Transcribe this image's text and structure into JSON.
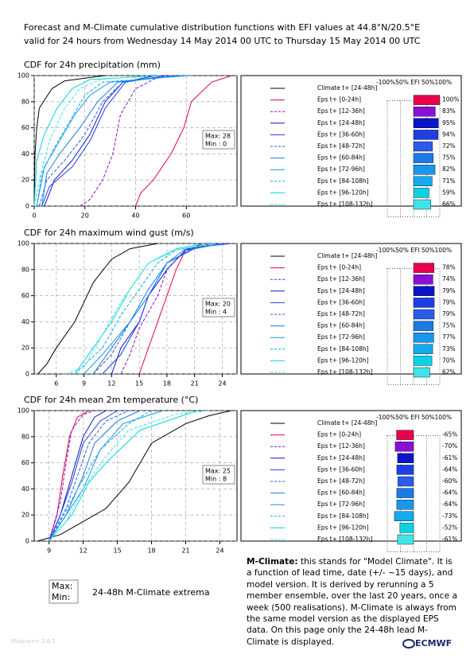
{
  "header": {
    "title": "Forecast and M-Climate cumulative distribution functions with EFI values at 44.8°N/20.5°E",
    "subtitle": "valid for 24 hours from Wednesday 14 May 2014 00 UTC to Thursday 15 May 2014 00 UTC"
  },
  "chart_data": [
    {
      "type": "line",
      "title": "CDF for 24h precipitation (mm)",
      "xlim": [
        0,
        80
      ],
      "xticks": [
        0,
        20,
        40,
        60
      ],
      "ylim": [
        0,
        100
      ],
      "yticks": [
        0,
        20,
        40,
        60,
        80,
        100
      ],
      "grid": true,
      "max_label": "Max: 28",
      "min_label": "Min : 0",
      "efi_header": "-100%50% EFI 50%100%",
      "series": [
        {
          "name": "Climate t+ [24-48h]",
          "color": "#000000",
          "dash": false,
          "x": [
            0,
            0.3,
            1,
            2,
            7,
            12,
            28
          ],
          "values": [
            0,
            40,
            60,
            75,
            90,
            96,
            100
          ]
        },
        {
          "name": "Eps t+ [0-24h]",
          "color": "#e8004c",
          "dash": false,
          "x": [
            40,
            42,
            47,
            54,
            59,
            62,
            70,
            78
          ],
          "values": [
            0,
            10,
            20,
            40,
            60,
            80,
            95,
            100
          ],
          "efi": 100,
          "efi_label": "100%"
        },
        {
          "name": "Eps t+ [12-36h]",
          "color": "#8a10d8",
          "dash": true,
          "x": [
            18,
            22,
            27,
            31,
            34,
            40,
            50
          ],
          "values": [
            0,
            5,
            20,
            40,
            70,
            90,
            100
          ],
          "efi": 83,
          "efi_label": "83%"
        },
        {
          "name": "Eps t+ [24-48h]",
          "color": "#0a14c8",
          "dash": false,
          "x": [
            4,
            8,
            15,
            22,
            28,
            35,
            48
          ],
          "values": [
            0,
            20,
            35,
            55,
            80,
            95,
            100
          ],
          "efi": 95,
          "efi_label": "95%"
        },
        {
          "name": "Eps t+ [36-60h]",
          "color": "#1e3ee6",
          "dash": false,
          "x": [
            3,
            6,
            15,
            22,
            28,
            36,
            52
          ],
          "values": [
            0,
            15,
            30,
            50,
            75,
            95,
            100
          ],
          "efi": 94,
          "efi_label": "94%"
        },
        {
          "name": "Eps t+ [48-72h]",
          "color": "#2a5cec",
          "dash": true,
          "x": [
            2,
            5,
            12,
            20,
            27,
            35,
            55
          ],
          "values": [
            0,
            20,
            35,
            55,
            80,
            95,
            100
          ],
          "efi": 72,
          "efi_label": "72%"
        },
        {
          "name": "Eps t+ [60-84h]",
          "color": "#1c7ae4",
          "dash": false,
          "x": [
            3,
            5,
            10,
            18,
            25,
            33,
            58
          ],
          "values": [
            0,
            25,
            40,
            60,
            80,
            95,
            100
          ],
          "efi": 75,
          "efi_label": "75%"
        },
        {
          "name": "Eps t+ [72-96h]",
          "color": "#1a96ec",
          "dash": false,
          "x": [
            1,
            4,
            10,
            16,
            22,
            30,
            60
          ],
          "values": [
            0,
            30,
            50,
            70,
            85,
            95,
            100
          ],
          "efi": 82,
          "efi_label": "82%"
        },
        {
          "name": "Eps t+ [84-108h]",
          "color": "#12aaf0",
          "dash": true,
          "x": [
            1,
            3,
            8,
            14,
            20,
            27,
            62
          ],
          "values": [
            0,
            25,
            45,
            65,
            85,
            95,
            100
          ],
          "efi": 71,
          "efi_label": "71%"
        },
        {
          "name": "Eps t+ [96-120h]",
          "color": "#08d4e4",
          "dash": false,
          "x": [
            0,
            1,
            4,
            9,
            15,
            22,
            50
          ],
          "values": [
            0,
            35,
            55,
            75,
            90,
            97,
            100
          ],
          "efi": 59,
          "efi_label": "59%"
        },
        {
          "name": "Eps t+ [108-132h]",
          "color": "#40e4e8",
          "dash": true,
          "x": [
            0,
            2,
            6,
            12,
            18,
            26,
            45
          ],
          "values": [
            0,
            20,
            50,
            75,
            90,
            97,
            100
          ],
          "efi": 66,
          "efi_label": "66%"
        }
      ]
    },
    {
      "type": "line",
      "title": "CDF for 24h maximum wind gust (m/s)",
      "xlim": [
        3.6,
        25.6
      ],
      "xticks": [
        6,
        9,
        12,
        15,
        18,
        21,
        24
      ],
      "ylim": [
        0,
        100
      ],
      "yticks": [
        0,
        20,
        40,
        60,
        80,
        100
      ],
      "grid": true,
      "max_label": "Max: 20",
      "min_label": "Min : 4",
      "efi_header": "-100%50% EFI 50%100%",
      "series": [
        {
          "name": "Climate t+ [24-48h]",
          "color": "#000000",
          "dash": false,
          "x": [
            4,
            5,
            6,
            8,
            10,
            12,
            14,
            17
          ],
          "values": [
            0,
            8,
            20,
            40,
            70,
            88,
            96,
            100
          ]
        },
        {
          "name": "Eps t+ [0-24h]",
          "color": "#e8004c",
          "dash": false,
          "x": [
            15,
            16,
            17,
            18,
            19,
            20,
            22
          ],
          "values": [
            0,
            20,
            40,
            60,
            80,
            95,
            100
          ],
          "efi": 78,
          "efi_label": "78%"
        },
        {
          "name": "Eps t+ [12-36h]",
          "color": "#8a10d8",
          "dash": true,
          "x": [
            13,
            14,
            15,
            17,
            18,
            20,
            23
          ],
          "values": [
            0,
            15,
            35,
            60,
            80,
            95,
            100
          ],
          "efi": 74,
          "efi_label": "74%"
        },
        {
          "name": "Eps t+ [24-48h]",
          "color": "#0a14c8",
          "dash": false,
          "x": [
            12,
            13,
            15,
            16,
            18,
            20,
            24
          ],
          "values": [
            0,
            20,
            40,
            60,
            80,
            95,
            100
          ],
          "efi": 79,
          "efi_label": "79%"
        },
        {
          "name": "Eps t+ [36-60h]",
          "color": "#1e3ee6",
          "dash": false,
          "x": [
            11,
            13,
            15,
            16,
            18,
            21,
            25
          ],
          "values": [
            0,
            15,
            40,
            60,
            85,
            97,
            100
          ],
          "efi": 79,
          "efi_label": "79%"
        },
        {
          "name": "Eps t+ [48-72h]",
          "color": "#2a5cec",
          "dash": true,
          "x": [
            10,
            12,
            14,
            16,
            18,
            21,
            25
          ],
          "values": [
            0,
            15,
            40,
            65,
            85,
            97,
            100
          ],
          "efi": 79,
          "efi_label": "79%"
        },
        {
          "name": "Eps t+ [60-84h]",
          "color": "#1c7ae4",
          "dash": false,
          "x": [
            10,
            12,
            14,
            16,
            18,
            21,
            24
          ],
          "values": [
            0,
            20,
            40,
            60,
            85,
            96,
            100
          ],
          "efi": 75,
          "efi_label": "75%"
        },
        {
          "name": "Eps t+ [72-96h]",
          "color": "#1a96ec",
          "dash": false,
          "x": [
            9,
            11,
            14,
            16,
            18,
            20,
            24
          ],
          "values": [
            0,
            15,
            40,
            65,
            85,
            96,
            100
          ],
          "efi": 77,
          "efi_label": "77%"
        },
        {
          "name": "Eps t+ [84-108h]",
          "color": "#12aaf0",
          "dash": true,
          "x": [
            8,
            11,
            13,
            15,
            17,
            19,
            23
          ],
          "values": [
            0,
            20,
            45,
            65,
            85,
            95,
            100
          ],
          "efi": 73,
          "efi_label": "73%"
        },
        {
          "name": "Eps t+ [96-120h]",
          "color": "#08d4e4",
          "dash": false,
          "x": [
            8,
            10,
            12,
            14,
            16,
            19,
            22
          ],
          "values": [
            0,
            20,
            40,
            65,
            85,
            96,
            100
          ],
          "efi": 70,
          "efi_label": "70%"
        },
        {
          "name": "Eps t+ [108-132h]",
          "color": "#40e4e8",
          "dash": true,
          "x": [
            7,
            9,
            11,
            13,
            16,
            19,
            23
          ],
          "values": [
            0,
            5,
            30,
            55,
            85,
            95,
            100
          ],
          "efi": 62,
          "efi_label": "62%"
        }
      ]
    },
    {
      "type": "line",
      "title": "CDF for 24h mean 2m temperature (°C)",
      "xlim": [
        7.7,
        25.5
      ],
      "xticks": [
        9,
        12,
        15,
        18,
        21,
        24
      ],
      "ylim": [
        0,
        100
      ],
      "yticks": [
        0,
        20,
        40,
        60,
        80,
        100
      ],
      "grid": true,
      "max_label": "Max: 25",
      "min_label": "Min : 8",
      "efi_header": "-100%50% EFI 50%100%",
      "series": [
        {
          "name": "Climate t+ [24-48h]",
          "color": "#000000",
          "dash": false,
          "x": [
            8,
            10,
            12,
            14,
            16,
            18,
            21,
            23,
            25
          ],
          "values": [
            0,
            5,
            15,
            25,
            45,
            75,
            90,
            96,
            100
          ]
        },
        {
          "name": "Eps t+ [0-24h]",
          "color": "#e8004c",
          "dash": false,
          "x": [
            9,
            9.7,
            10.2,
            10.8,
            11.5,
            12.5
          ],
          "values": [
            0,
            20,
            50,
            80,
            95,
            100
          ],
          "efi": -65,
          "efi_label": "-65%"
        },
        {
          "name": "Eps t+ [12-36h]",
          "color": "#8a10d8",
          "dash": true,
          "x": [
            9,
            10,
            10.5,
            11,
            12,
            13
          ],
          "values": [
            0,
            30,
            60,
            85,
            97,
            100
          ],
          "efi": -70,
          "efi_label": "-70%"
        },
        {
          "name": "Eps t+ [24-48h]",
          "color": "#0a14c8",
          "dash": false,
          "x": [
            9,
            10,
            11,
            12,
            13,
            14
          ],
          "values": [
            0,
            20,
            50,
            80,
            95,
            100
          ],
          "efi": -61,
          "efi_label": "-61%"
        },
        {
          "name": "Eps t+ [36-60h]",
          "color": "#1e3ee6",
          "dash": false,
          "x": [
            9,
            10,
            11,
            12,
            13.5,
            15
          ],
          "values": [
            0,
            20,
            45,
            75,
            92,
            100
          ],
          "efi": -64,
          "efi_label": "-64%"
        },
        {
          "name": "Eps t+ [48-72h]",
          "color": "#2a5cec",
          "dash": true,
          "x": [
            9,
            10.5,
            11.5,
            12.5,
            14,
            16
          ],
          "values": [
            0,
            25,
            50,
            75,
            92,
            100
          ],
          "efi": -60,
          "efi_label": "-60%"
        },
        {
          "name": "Eps t+ [60-84h]",
          "color": "#1c7ae4",
          "dash": false,
          "x": [
            9,
            10.5,
            12,
            13,
            15,
            17
          ],
          "values": [
            0,
            20,
            50,
            75,
            92,
            100
          ],
          "efi": -64,
          "efi_label": "-64%"
        },
        {
          "name": "Eps t+ [72-96h]",
          "color": "#1a96ec",
          "dash": false,
          "x": [
            9,
            10.5,
            12,
            13.5,
            15.5,
            19
          ],
          "values": [
            0,
            20,
            40,
            70,
            90,
            100
          ],
          "efi": -64,
          "efi_label": "-64%"
        },
        {
          "name": "Eps t+ [84-108h]",
          "color": "#12aaf0",
          "dash": true,
          "x": [
            9,
            10,
            11.5,
            13.5,
            16,
            18
          ],
          "values": [
            0,
            15,
            40,
            70,
            90,
            100
          ],
          "efi": -73,
          "efi_label": "-73%"
        },
        {
          "name": "Eps t+ [96-120h]",
          "color": "#08d4e4",
          "dash": false,
          "x": [
            9,
            11,
            12.5,
            14,
            17,
            22
          ],
          "values": [
            0,
            20,
            45,
            60,
            85,
            100
          ],
          "efi": -52,
          "efi_label": "-52%"
        },
        {
          "name": "Eps t+ [108-132h]",
          "color": "#40e4e8",
          "dash": true,
          "x": [
            9,
            10.5,
            12,
            14,
            16,
            20,
            23
          ],
          "values": [
            0,
            15,
            40,
            65,
            85,
            97,
            100
          ],
          "efi": -61,
          "efi_label": "-61%"
        }
      ]
    }
  ],
  "key": {
    "max": "Max:",
    "min": "Min:",
    "text": "24-48h M-Climate extrema"
  },
  "note": {
    "term": "M-Climate:",
    "text": " this stands for \"Model Climate\". It is a function of lead time, date (+/- ~15 days), and model version. It is derived by rerunning a 5 member ensemble, over the last 20 years, once a week (500 realisations). M-Climate is always from the same model version as the displayed EPS data. On this page only the 24-48h lead M-Climate is displayed."
  },
  "footer": {
    "software": "Magics++ 2.6.1",
    "logo": "ECMWF"
  }
}
